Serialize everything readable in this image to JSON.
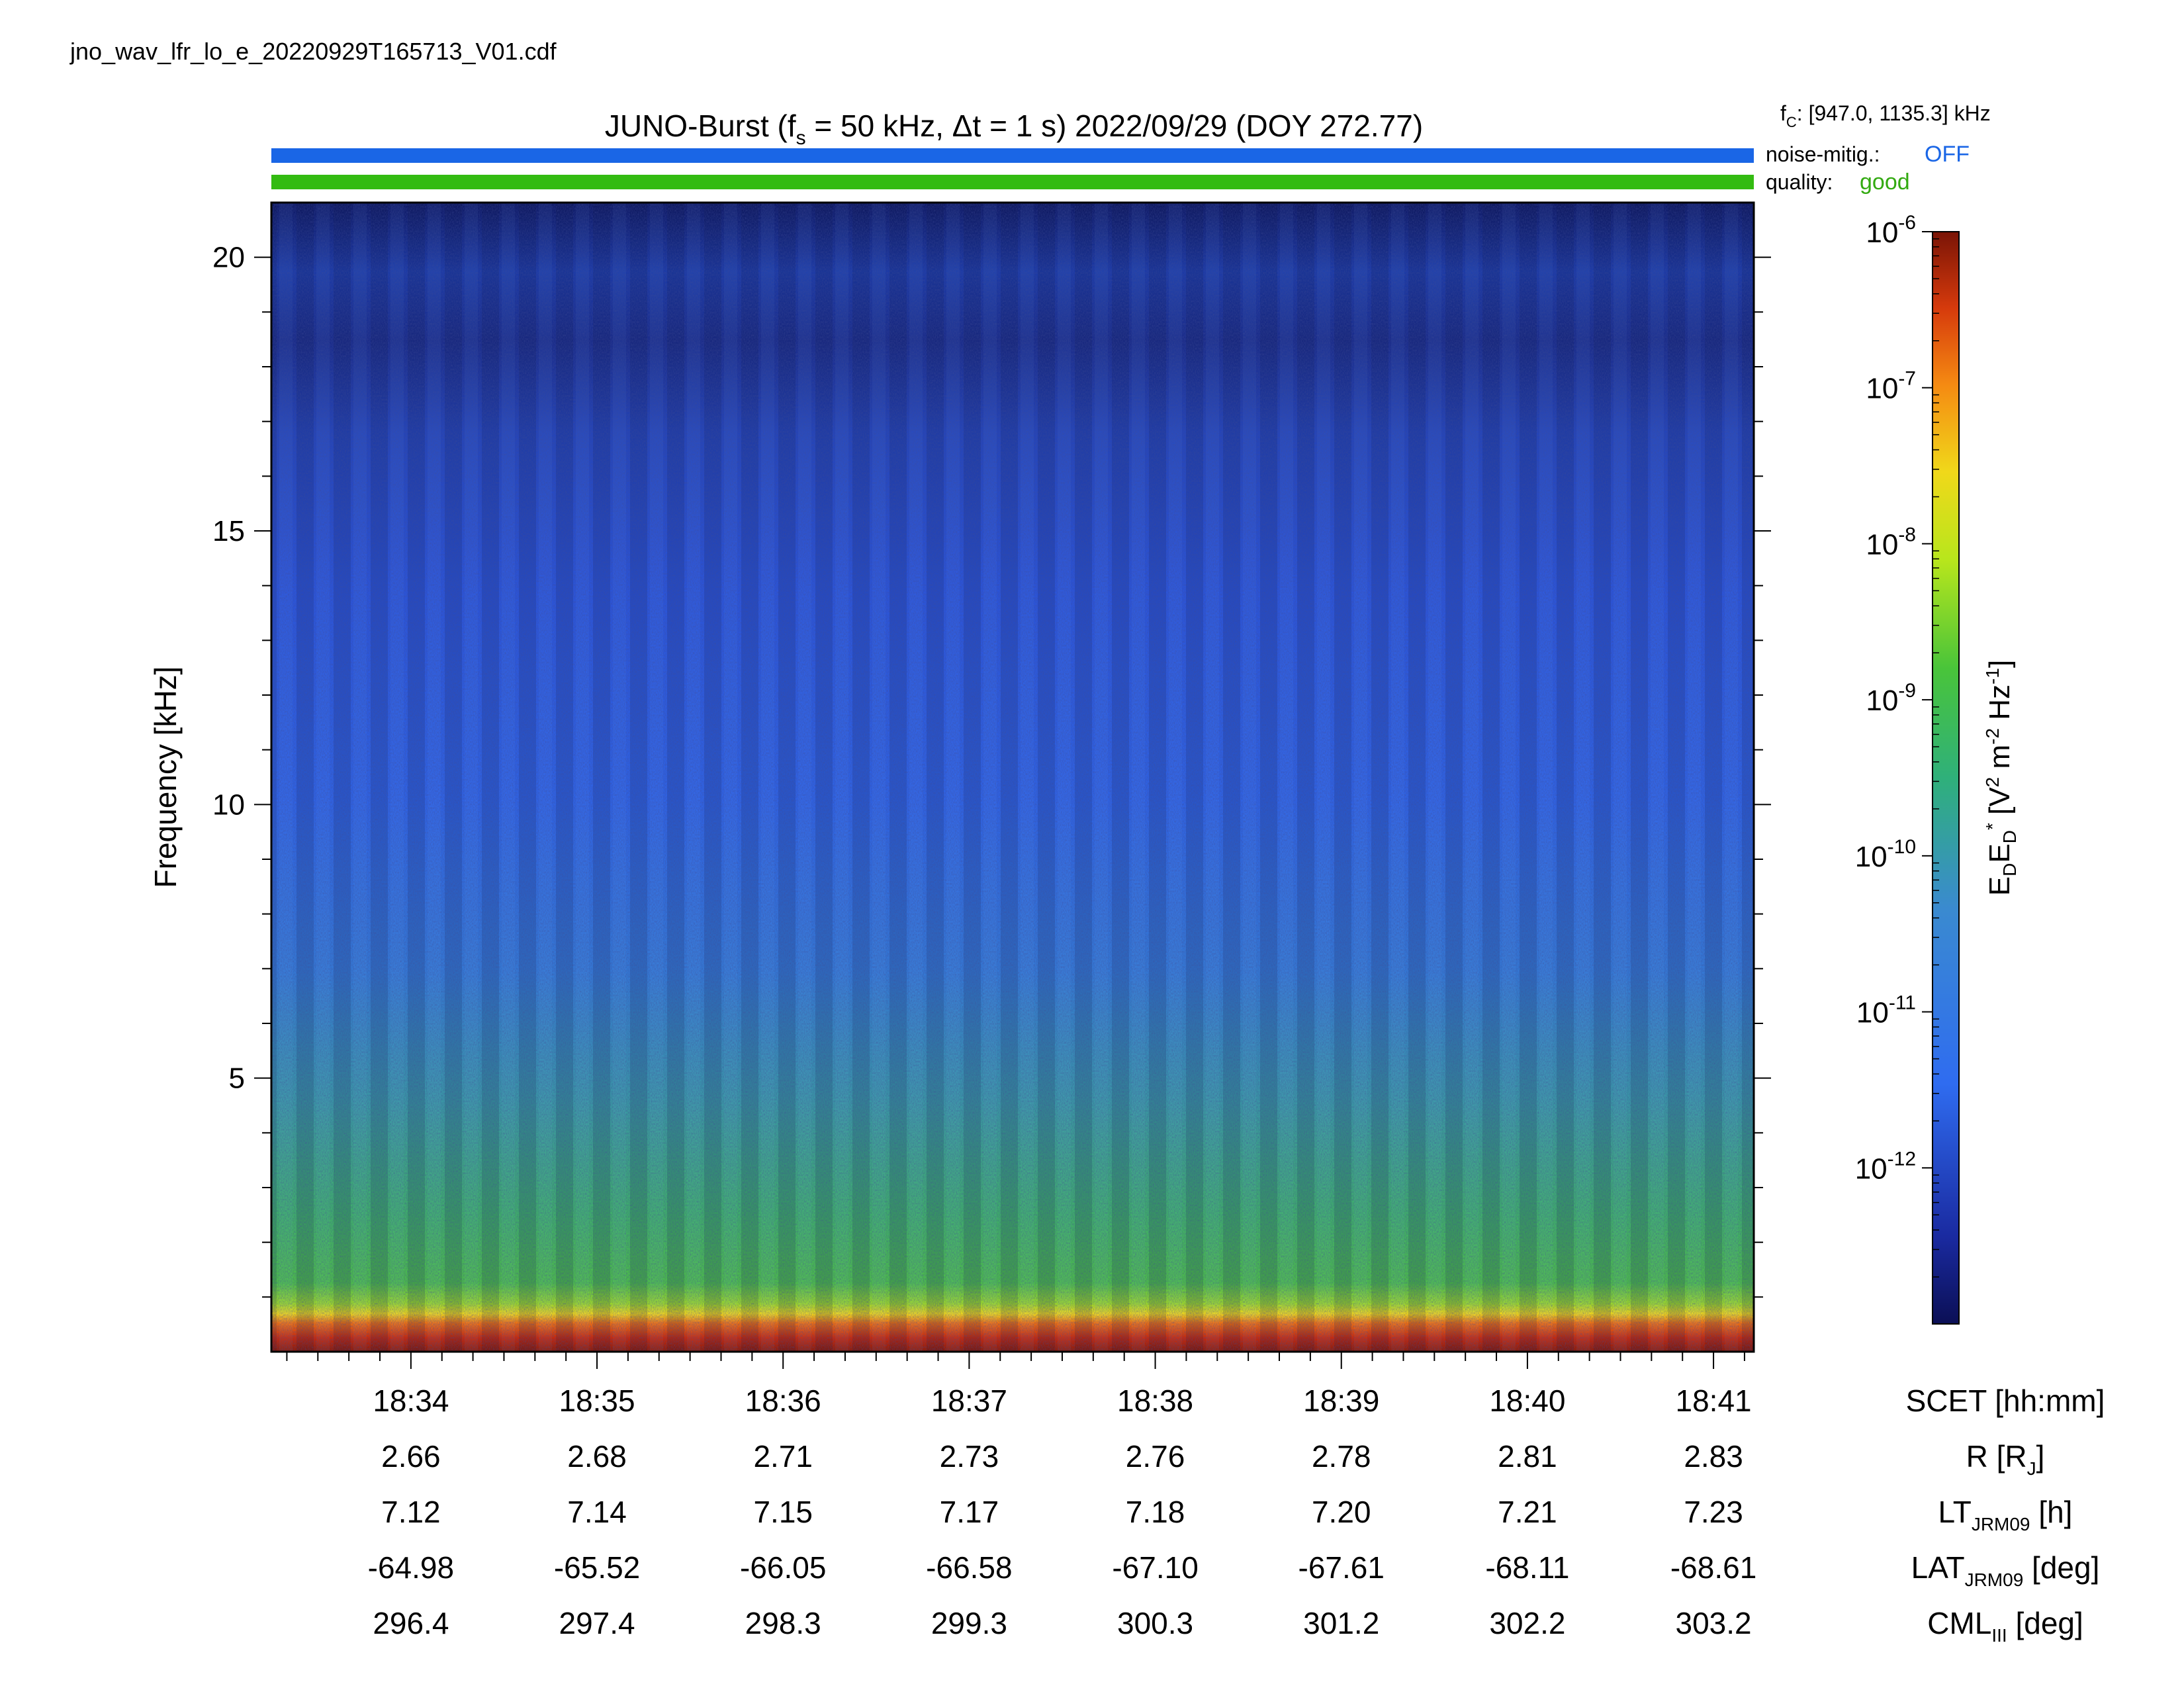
{
  "filename": "jno_wav_lfr_lo_e_20220929T165713_V01.cdf",
  "header": {
    "title_prefix": "JUNO-Burst (f",
    "title_sub": "s",
    "title_mid": " = 50 kHz, Δt = 1 s)  2022/09/29 (DOY 272.77)",
    "fc_main": "f",
    "fc_sub": "C",
    "fc_value": ": [947.0, 1135.3] kHz",
    "noise_label": "noise-mitig.:",
    "noise_value": "OFF",
    "quality_label": "quality:",
    "quality_value": "good"
  },
  "colors": {
    "noise_bar": "#1a66e6",
    "quality_bar": "#33bb11",
    "noise_text": "#1a66e6",
    "quality_text": "#33aa11"
  },
  "chart_data": {
    "type": "heatmap",
    "ylabel": "Frequency [kHz]",
    "ylim": [
      0,
      21
    ],
    "y_ticks": [
      5,
      10,
      15,
      20
    ],
    "x_ticks_time": [
      "18:34",
      "18:35",
      "18:36",
      "18:37",
      "18:38",
      "18:39",
      "18:40",
      "18:41"
    ],
    "x_start": "18:33:15",
    "x_end": "18:41:13",
    "ephemeris_rows": [
      {
        "label": "SCET [hh:mm]",
        "values": [
          "18:34",
          "18:35",
          "18:36",
          "18:37",
          "18:38",
          "18:39",
          "18:40",
          "18:41"
        ]
      },
      {
        "label_main": "R [R",
        "label_sub": "J",
        "label_end": "]",
        "values": [
          "2.66",
          "2.68",
          "2.71",
          "2.73",
          "2.76",
          "2.78",
          "2.81",
          "2.83"
        ]
      },
      {
        "label_main": "LT",
        "label_sub": "JRM09",
        "label_end": " [h]",
        "values": [
          "7.12",
          "7.14",
          "7.15",
          "7.17",
          "7.18",
          "7.20",
          "7.21",
          "7.23"
        ]
      },
      {
        "label_main": "LAT",
        "label_sub": "JRM09",
        "label_end": " [deg]",
        "values": [
          "-64.98",
          "-65.52",
          "-66.05",
          "-66.58",
          "-67.10",
          "-67.61",
          "-68.11",
          "-68.61"
        ]
      },
      {
        "label_main": "CML",
        "label_sub": "III",
        "label_end": " [deg]",
        "values": [
          "296.4",
          "297.4",
          "298.3",
          "299.3",
          "300.3",
          "301.2",
          "302.2",
          "303.2"
        ]
      }
    ],
    "colorbar": {
      "scale": "log",
      "range": [
        1e-13,
        1e-06
      ],
      "ticks": [
        {
          "base": "10",
          "exp": "-6"
        },
        {
          "base": "10",
          "exp": "-7"
        },
        {
          "base": "10",
          "exp": "-8"
        },
        {
          "base": "10",
          "exp": "-9"
        },
        {
          "base": "10",
          "exp": "-10"
        },
        {
          "base": "10",
          "exp": "-11"
        },
        {
          "base": "10",
          "exp": "-12"
        }
      ],
      "label": "EDED* [V2 m-2 Hz-1]"
    },
    "intensity_profile": [
      {
        "freq_khz": 0.3,
        "level": 0.98
      },
      {
        "freq_khz": 0.7,
        "level": 0.86
      },
      {
        "freq_khz": 1.0,
        "level": 0.68
      },
      {
        "freq_khz": 2.0,
        "level": 0.53
      },
      {
        "freq_khz": 5.0,
        "level": 0.45
      },
      {
        "freq_khz": 8.0,
        "level": 0.37
      },
      {
        "freq_khz": 12.0,
        "level": 0.31
      },
      {
        "freq_khz": 17.0,
        "level": 0.25
      },
      {
        "freq_khz": 20.0,
        "level": 0.18
      },
      {
        "freq_khz": 21.0,
        "level": 0.14
      }
    ]
  }
}
